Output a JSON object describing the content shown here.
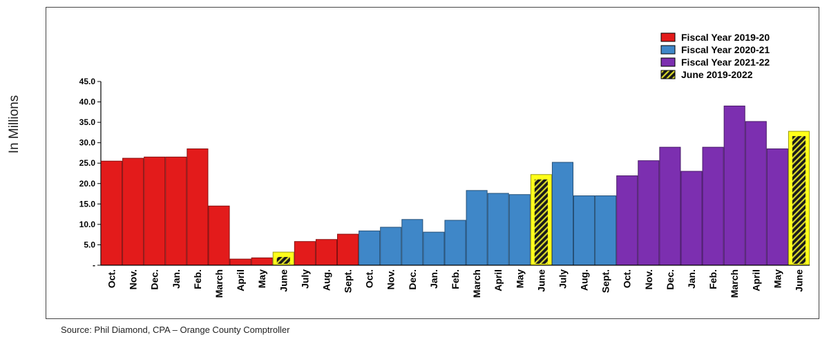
{
  "ylabel": "In Millions",
  "source": "Source:  Phil Diamond, CPA – Orange County Comptroller",
  "chart_data": {
    "type": "bar",
    "title": "",
    "xlabel": "",
    "ylabel": "In Millions",
    "ylim": [
      0,
      45
    ],
    "yticks": [
      "-",
      "5.0",
      "10.0",
      "15.0",
      "20.0",
      "25.0",
      "30.0",
      "35.0",
      "40.0",
      "45.0"
    ],
    "grid": false,
    "legend_position": "top-right",
    "categories": [
      "Oct.",
      "Nov.",
      "Dec.",
      "Jan.",
      "Feb.",
      "March",
      "April",
      "May",
      "June",
      "July",
      "Aug.",
      "Sept.",
      "Oct.",
      "Nov.",
      "Dec.",
      "Jan.",
      "Feb.",
      "March",
      "April",
      "May",
      "June",
      "July",
      "Aug.",
      "Sept.",
      "Oct.",
      "Nov.",
      "Dec.",
      "Jan.",
      "Feb.",
      "March",
      "April",
      "May",
      "June"
    ],
    "values": [
      25.5,
      26.2,
      26.5,
      26.5,
      28.5,
      14.5,
      1.5,
      1.8,
      3.2,
      5.8,
      6.3,
      7.6,
      8.4,
      9.3,
      11.2,
      8.1,
      11.0,
      18.3,
      17.6,
      17.3,
      22.2,
      25.2,
      17.0,
      17.0,
      21.9,
      25.6,
      28.9,
      23.0,
      28.9,
      39.0,
      35.2,
      28.5,
      32.8
    ],
    "groups": [
      "fy1920",
      "fy1920",
      "fy1920",
      "fy1920",
      "fy1920",
      "fy1920",
      "fy1920",
      "fy1920",
      "june",
      "fy1920",
      "fy1920",
      "fy1920",
      "fy2021",
      "fy2021",
      "fy2021",
      "fy2021",
      "fy2021",
      "fy2021",
      "fy2021",
      "fy2021",
      "june",
      "fy2021",
      "fy2021",
      "fy2021",
      "fy2122",
      "fy2122",
      "fy2122",
      "fy2122",
      "fy2122",
      "fy2122",
      "fy2122",
      "fy2122",
      "june"
    ],
    "series": [
      {
        "key": "fy1920",
        "name": "Fiscal Year 2019-20",
        "color": "#e31b1b"
      },
      {
        "key": "fy2021",
        "name": "Fiscal Year 2020-21",
        "color": "#3f87c8"
      },
      {
        "key": "fy2122",
        "name": "Fiscal Year 2021-22",
        "color": "#7c2fb0"
      },
      {
        "key": "june",
        "name": "June 2019-2022",
        "color": "#ffff1a",
        "pattern": "black-diagonal-hatch"
      }
    ]
  }
}
